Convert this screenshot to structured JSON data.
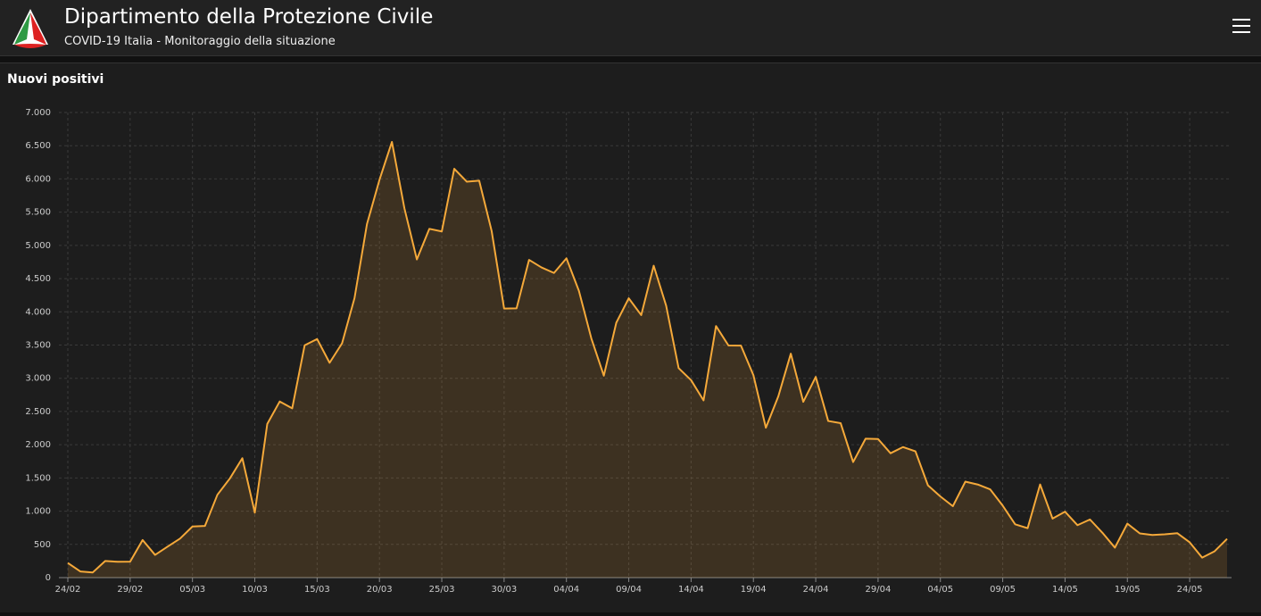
{
  "header": {
    "title": "Dipartimento della Protezione Civile",
    "subtitle": "COVID-19 Italia - Monitoraggio della situazione"
  },
  "chart_data": {
    "type": "area",
    "title": "Nuovi positivi",
    "color": "#f5a93a",
    "grid": true,
    "categories": [
      "24/02",
      null,
      null,
      null,
      null,
      "29/02",
      null,
      null,
      null,
      null,
      "05/03",
      null,
      null,
      null,
      null,
      "10/03",
      null,
      null,
      null,
      null,
      "15/03",
      null,
      null,
      null,
      null,
      "20/03",
      null,
      null,
      null,
      null,
      "25/03",
      null,
      null,
      null,
      null,
      "30/03",
      null,
      null,
      null,
      null,
      "04/04",
      null,
      null,
      null,
      null,
      "09/04",
      null,
      null,
      null,
      null,
      "14/04",
      null,
      null,
      null,
      null,
      "19/04",
      null,
      null,
      null,
      null,
      "24/04",
      null,
      null,
      null,
      null,
      "29/04",
      null,
      null,
      null,
      null,
      "04/05",
      null,
      null,
      null,
      null,
      "09/05",
      null,
      null,
      null,
      null,
      "14/05",
      null,
      null,
      null,
      null,
      "19/05",
      null,
      null,
      null,
      null,
      "24/05",
      null,
      null,
      null
    ],
    "values": [
      221,
      93,
      78,
      250,
      238,
      240,
      566,
      342,
      466,
      587,
      769,
      778,
      1247,
      1492,
      1797,
      977,
      2313,
      2651,
      2547,
      3497,
      3590,
      3233,
      3526,
      4207,
      5322,
      5986,
      6557,
      5560,
      4789,
      5249,
      5210,
      6153,
      5959,
      5974,
      5217,
      4050,
      4053,
      4782,
      4668,
      4585,
      4805,
      4316,
      3599,
      3039,
      3836,
      4204,
      3951,
      4694,
      4092,
      3153,
      2972,
      2667,
      3786,
      3493,
      3491,
      3047,
      2256,
      2729,
      3370,
      2646,
      3021,
      2357,
      2324,
      1739,
      2091,
      2086,
      1872,
      1965,
      1900,
      1389,
      1221,
      1075,
      1444,
      1401,
      1327,
      1083,
      802,
      744,
      1402,
      888,
      992,
      789,
      875,
      675,
      451,
      813,
      665,
      642,
      652,
      669,
      531,
      300,
      397,
      584
    ],
    "ylim": [
      0,
      7000
    ],
    "yticks": [
      0,
      500,
      {
        "value": 1000,
        "label": "1.000"
      },
      {
        "value": 1500,
        "label": "1.500"
      },
      {
        "value": 2000,
        "label": "2.000"
      },
      {
        "value": 2500,
        "label": "2.500"
      },
      {
        "value": 3000,
        "label": "3.000"
      },
      {
        "value": 3500,
        "label": "3.500"
      },
      {
        "value": 4000,
        "label": "4.000"
      },
      {
        "value": 4500,
        "label": "4.500"
      },
      {
        "value": 5000,
        "label": "5.000"
      },
      {
        "value": 5500,
        "label": "5.500"
      },
      {
        "value": 6000,
        "label": "6.000"
      },
      {
        "value": 6500,
        "label": "6.500"
      },
      {
        "value": 7000,
        "label": "7.000"
      }
    ]
  }
}
